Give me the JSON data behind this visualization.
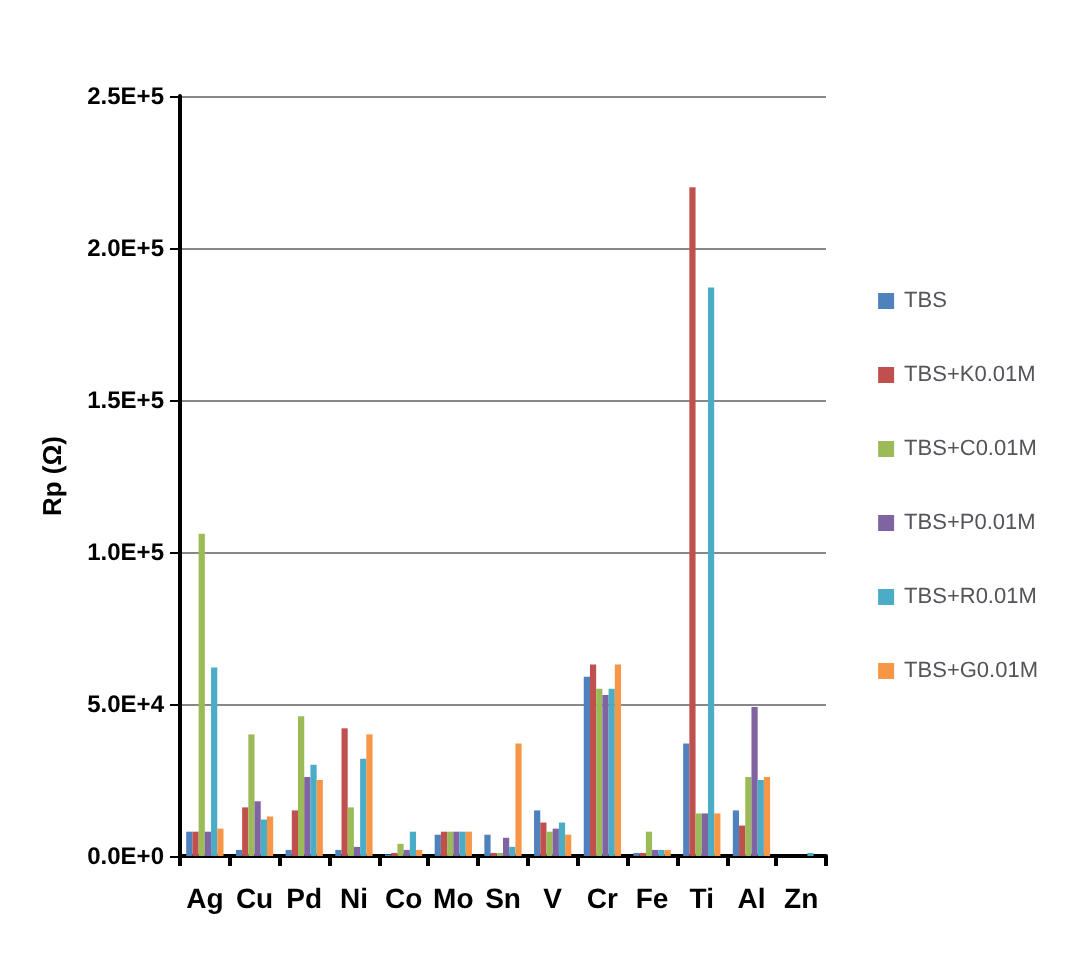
{
  "chart_data": {
    "type": "bar",
    "ylabel": "Rp (Ω)",
    "categories": [
      "Ag",
      "Cu",
      "Pd",
      "Ni",
      "Co",
      "Mo",
      "Sn",
      "V",
      "Cr",
      "Fe",
      "Ti",
      "Al",
      "Zn"
    ],
    "series": [
      {
        "name": "TBS",
        "color": "#4f81bd",
        "values": [
          8000,
          2000,
          2000,
          2000,
          500,
          7000,
          7000,
          15000,
          59000,
          1000,
          37000,
          15000,
          0
        ]
      },
      {
        "name": "TBS+K0.01M",
        "color": "#c0504d",
        "values": [
          8000,
          16000,
          15000,
          42000,
          1000,
          8000,
          1000,
          11000,
          63000,
          1000,
          220000,
          10000,
          0
        ]
      },
      {
        "name": "TBS+C0.01M",
        "color": "#9bbb59",
        "values": [
          106000,
          40000,
          46000,
          16000,
          4000,
          8000,
          1000,
          8000,
          55000,
          8000,
          14000,
          26000,
          0
        ]
      },
      {
        "name": "TBS+P0.01M",
        "color": "#8064a2",
        "values": [
          8000,
          18000,
          26000,
          3000,
          2000,
          8000,
          6000,
          9000,
          53000,
          2000,
          14000,
          49000,
          0
        ]
      },
      {
        "name": "TBS+R0.01M",
        "color": "#4bacc6",
        "values": [
          62000,
          12000,
          30000,
          32000,
          8000,
          8000,
          3000,
          11000,
          55000,
          2000,
          187000,
          25000,
          1000
        ]
      },
      {
        "name": "TBS+G0.01M",
        "color": "#f79646",
        "values": [
          9000,
          13000,
          25000,
          40000,
          2000,
          8000,
          37000,
          7000,
          63000,
          2000,
          14000,
          26000,
          0
        ]
      }
    ],
    "ylim": [
      0,
      250000
    ],
    "yticks": [
      {
        "value": 0,
        "label": "0.0E+0"
      },
      {
        "value": 50000,
        "label": "5.0E+4"
      },
      {
        "value": 100000,
        "label": "1.0E+5"
      },
      {
        "value": 150000,
        "label": "1.5E+5"
      },
      {
        "value": 200000,
        "label": "2.0E+5"
      },
      {
        "value": 250000,
        "label": "2.5E+5"
      }
    ],
    "grid": "y",
    "legend": "right"
  }
}
